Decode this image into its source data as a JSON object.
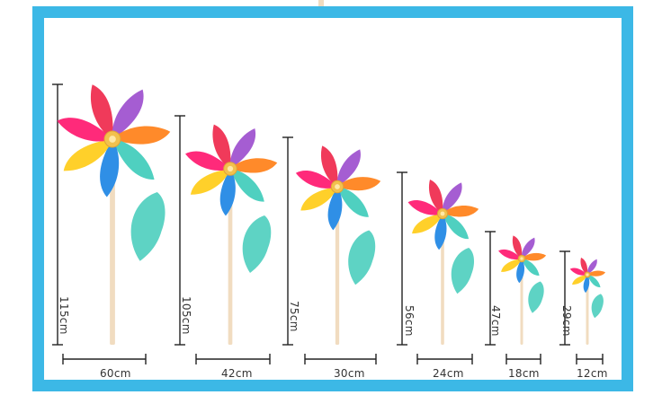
{
  "colors": {
    "frame": "#3cb8e6",
    "petals": [
      "#f03a5a",
      "#a55dd2",
      "#ff8a2a",
      "#4fd0c0",
      "#2f8fe6",
      "#ffd02a",
      "#ff2a7a"
    ],
    "hub": "#f2c14e",
    "leaf": "#5ed3c4",
    "stick": "#f1dcc0",
    "dimension": "#222222"
  },
  "pinwheels": [
    {
      "id": "60",
      "width": "60cm",
      "height": "115cm"
    },
    {
      "id": "42",
      "width": "42cm",
      "height": "105cm"
    },
    {
      "id": "30",
      "width": "30cm",
      "height": "75cm"
    },
    {
      "id": "24",
      "width": "24cm",
      "height": "56cm"
    },
    {
      "id": "18",
      "width": "18cm",
      "height": "47cm"
    },
    {
      "id": "12",
      "width": "12cm",
      "height": "29cm"
    }
  ]
}
